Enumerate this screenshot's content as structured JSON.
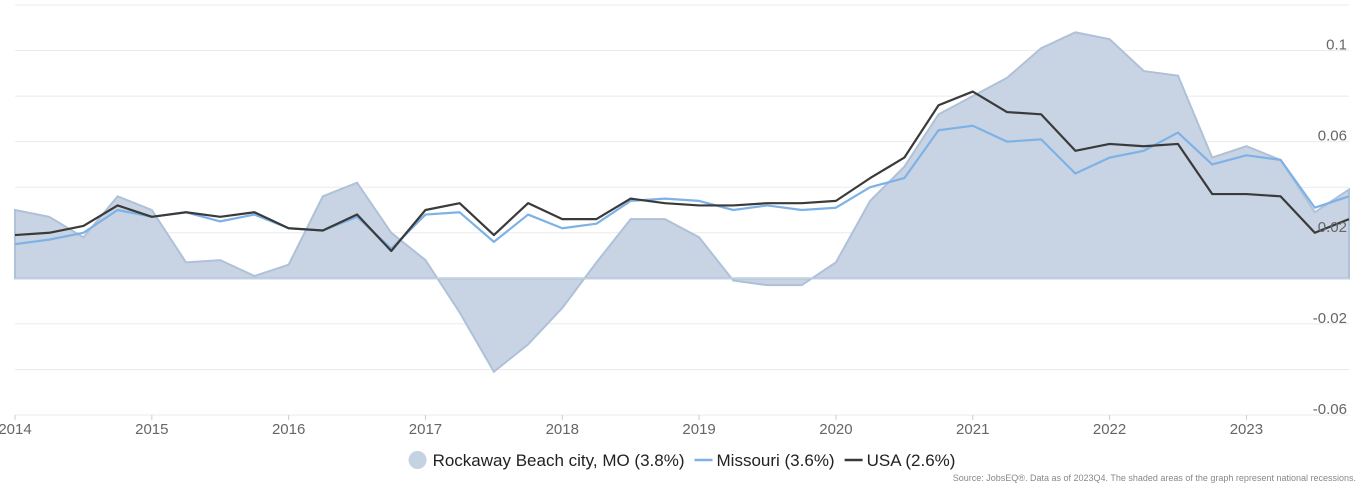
{
  "chart_data": {
    "type": "line",
    "x": [
      2014,
      2014.25,
      2014.5,
      2014.75,
      2015,
      2015.25,
      2015.5,
      2015.75,
      2016,
      2016.25,
      2016.5,
      2016.75,
      2017,
      2017.25,
      2017.5,
      2017.75,
      2018,
      2018.25,
      2018.5,
      2018.75,
      2019,
      2019.25,
      2019.5,
      2019.75,
      2020,
      2020.25,
      2020.5,
      2020.75,
      2021,
      2021.25,
      2021.5,
      2021.75,
      2022,
      2022.25,
      2022.5,
      2022.75,
      2023,
      2023.25,
      2023.5,
      2023.75
    ],
    "series": [
      {
        "name": "Rockaway Beach city, MO (3.8%)",
        "color": "#c5d2e2",
        "style": "area",
        "values": [
          0.03,
          0.027,
          0.018,
          0.036,
          0.03,
          0.007,
          0.008,
          0.001,
          0.006,
          0.036,
          0.042,
          0.02,
          0.008,
          -0.015,
          -0.041,
          -0.029,
          -0.013,
          0.007,
          0.026,
          0.026,
          0.018,
          -0.001,
          -0.003,
          -0.003,
          0.007,
          0.034,
          0.049,
          0.072,
          0.08,
          0.088,
          0.101,
          0.108,
          0.105,
          0.091,
          0.089,
          0.053,
          0.058,
          0.052,
          0.029,
          0.039
        ]
      },
      {
        "name": "Missouri (3.6%)",
        "color": "#7eb2e6",
        "style": "line",
        "values": [
          0.015,
          0.017,
          0.02,
          0.03,
          0.027,
          0.029,
          0.025,
          0.028,
          0.022,
          0.021,
          0.027,
          0.013,
          0.028,
          0.029,
          0.016,
          0.028,
          0.022,
          0.024,
          0.034,
          0.035,
          0.034,
          0.03,
          0.032,
          0.03,
          0.031,
          0.04,
          0.044,
          0.065,
          0.067,
          0.06,
          0.061,
          0.046,
          0.053,
          0.056,
          0.064,
          0.05,
          0.054,
          0.052,
          0.031,
          0.036
        ]
      },
      {
        "name": "USA (2.6%)",
        "color": "#3a3a3a",
        "style": "line",
        "values": [
          0.019,
          0.02,
          0.023,
          0.032,
          0.027,
          0.029,
          0.027,
          0.029,
          0.022,
          0.021,
          0.028,
          0.012,
          0.03,
          0.033,
          0.019,
          0.033,
          0.026,
          0.026,
          0.035,
          0.033,
          0.032,
          0.032,
          0.033,
          0.033,
          0.034,
          0.044,
          0.053,
          0.076,
          0.082,
          0.073,
          0.072,
          0.056,
          0.059,
          0.058,
          0.059,
          0.037,
          0.037,
          0.036,
          0.02,
          0.026
        ]
      }
    ],
    "xlim": [
      2014,
      2023.75
    ],
    "xticks": [
      2014,
      2015,
      2016,
      2017,
      2018,
      2019,
      2020,
      2021,
      2022,
      2023
    ],
    "ylim": [
      -0.06,
      0.12
    ],
    "yticks": [
      -0.06,
      -0.02,
      0.02,
      0.06,
      0.1
    ],
    "grid_yticks": [
      -0.06,
      -0.04,
      -0.02,
      0,
      0.02,
      0.04,
      0.06,
      0.08,
      0.1,
      0.12
    ],
    "grid": true,
    "legend": "bottom",
    "source": "Source: JobsEQ®. Data as of 2023Q4. The shaded areas of the graph represent national recessions."
  }
}
